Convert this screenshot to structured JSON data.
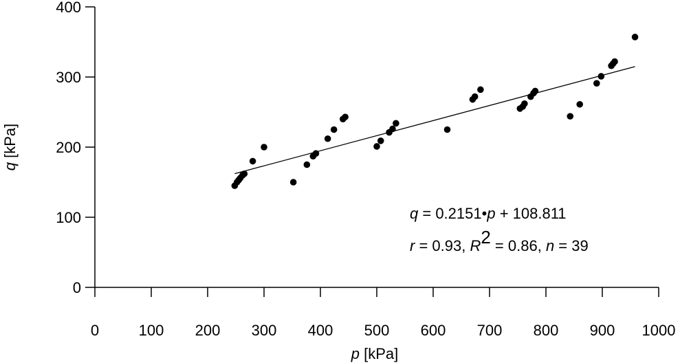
{
  "chart_data": {
    "type": "scatter",
    "xlabel_var": "p",
    "xlabel_unit": " [kPa]",
    "ylabel_var": "q",
    "ylabel_unit": " [kPa]",
    "xlim": [
      0,
      1000
    ],
    "ylim": [
      0,
      400
    ],
    "xticks": [
      0,
      100,
      200,
      300,
      400,
      500,
      600,
      700,
      800,
      900,
      1000
    ],
    "yticks": [
      0,
      100,
      200,
      300,
      400
    ],
    "grid": false,
    "points": [
      [
        248,
        145
      ],
      [
        252,
        150
      ],
      [
        255,
        153
      ],
      [
        258,
        156
      ],
      [
        262,
        160
      ],
      [
        265,
        162
      ],
      [
        280,
        180
      ],
      [
        300,
        200
      ],
      [
        352,
        150
      ],
      [
        376,
        175
      ],
      [
        387,
        187
      ],
      [
        392,
        191
      ],
      [
        413,
        212
      ],
      [
        424,
        225
      ],
      [
        440,
        240
      ],
      [
        444,
        243
      ],
      [
        500,
        201
      ],
      [
        507,
        209
      ],
      [
        522,
        221
      ],
      [
        528,
        226
      ],
      [
        534,
        234
      ],
      [
        625,
        225
      ],
      [
        670,
        268
      ],
      [
        674,
        272
      ],
      [
        684,
        282
      ],
      [
        754,
        255
      ],
      [
        759,
        258
      ],
      [
        762,
        262
      ],
      [
        773,
        272
      ],
      [
        778,
        277
      ],
      [
        781,
        280
      ],
      [
        843,
        244
      ],
      [
        860,
        261
      ],
      [
        890,
        291
      ],
      [
        898,
        301
      ],
      [
        916,
        316
      ],
      [
        919,
        319
      ],
      [
        922,
        322
      ],
      [
        958,
        357
      ]
    ],
    "regression": {
      "slope": 0.2151,
      "intercept": 108.811,
      "x_range": [
        248,
        958
      ]
    },
    "annotation": {
      "line1": {
        "var1": "q",
        "mid": " = 0.2151•",
        "var2": "p",
        "tail": " + 108.811"
      },
      "line2": {
        "r_var": "r",
        "r_text": " = 0.93, ",
        "R_var": "R",
        "R_sup": "2",
        "R_text": " = 0.86, ",
        "n_var": "n",
        "n_text": " = 39"
      }
    },
    "colors": {
      "points": "#000000",
      "line": "#000000",
      "axes": "#000000"
    }
  }
}
